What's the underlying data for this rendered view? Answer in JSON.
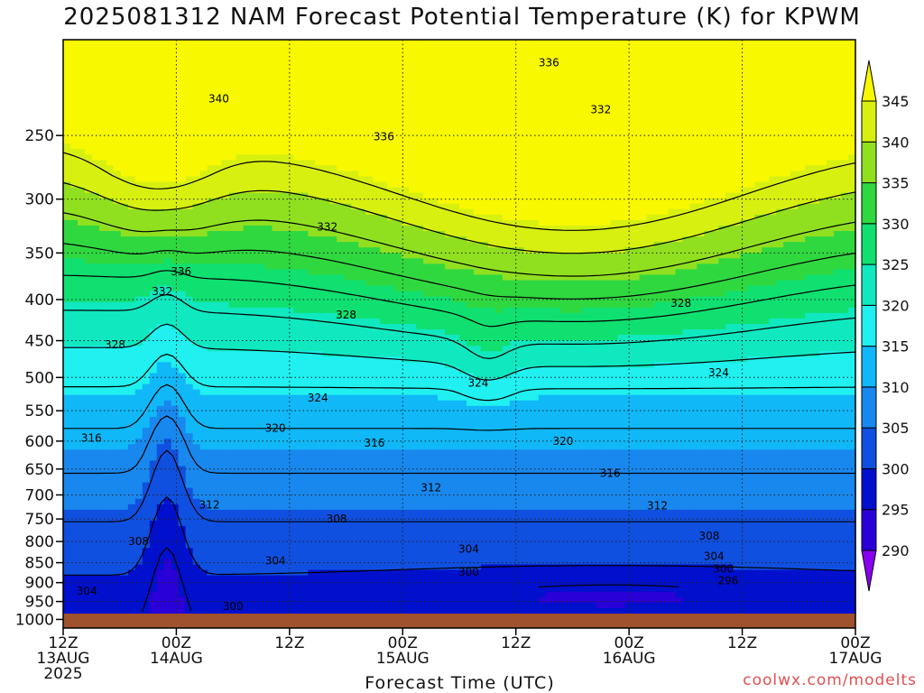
{
  "chart_data": {
    "type": "heatmap",
    "title": "2025081312 NAM Forecast Potential Temperature (K) for KPWM",
    "xlabel": "Forecast Time (UTC)",
    "ylabel": "",
    "credit": "coolwx.com/modelts",
    "y_scale": "log-pressure",
    "ylim_hpa": [
      1025,
      190
    ],
    "y_ticks": [
      "250",
      "300",
      "350",
      "400",
      "450",
      "500",
      "550",
      "600",
      "650",
      "700",
      "750",
      "800",
      "850",
      "900",
      "950",
      "1000"
    ],
    "x_ticks": [
      {
        "hour": 0,
        "line1": "12Z",
        "line2": "13AUG",
        "line3": "2025"
      },
      {
        "hour": 12,
        "line1": "00Z",
        "line2": "14AUG",
        "line3": ""
      },
      {
        "hour": 24,
        "line1": "12Z",
        "line2": "",
        "line3": ""
      },
      {
        "hour": 36,
        "line1": "00Z",
        "line2": "15AUG",
        "line3": ""
      },
      {
        "hour": 48,
        "line1": "12Z",
        "line2": "",
        "line3": ""
      },
      {
        "hour": 60,
        "line1": "00Z",
        "line2": "16AUG",
        "line3": ""
      },
      {
        "hour": 72,
        "line1": "12Z",
        "line2": "",
        "line3": ""
      },
      {
        "hour": 84,
        "line1": "00Z",
        "line2": "17AUG",
        "line3": ""
      }
    ],
    "colorbar": {
      "levels": [
        "290",
        "295",
        "300",
        "305",
        "310",
        "315",
        "320",
        "325",
        "330",
        "335",
        "340",
        "345"
      ],
      "colors": [
        "#8800ee",
        "#2a00d8",
        "#0010cc",
        "#1050e0",
        "#1888ee",
        "#10b8f8",
        "#20f0f0",
        "#10e8c0",
        "#10e070",
        "#30d840",
        "#90e020",
        "#d8f010",
        "#f8f800"
      ]
    },
    "contour_labels": [
      {
        "text": "340",
        "hour": 16.5,
        "p": 225
      },
      {
        "text": "336",
        "hour": 51.5,
        "p": 203
      },
      {
        "text": "332",
        "hour": 57.0,
        "p": 232
      },
      {
        "text": "336",
        "hour": 34.0,
        "p": 251
      },
      {
        "text": "332",
        "hour": 28.0,
        "p": 325
      },
      {
        "text": "336",
        "hour": 12.5,
        "p": 369
      },
      {
        "text": "332",
        "hour": 10.5,
        "p": 391
      },
      {
        "text": "328",
        "hour": 30.0,
        "p": 418
      },
      {
        "text": "328",
        "hour": 5.5,
        "p": 455
      },
      {
        "text": "328",
        "hour": 65.5,
        "p": 404
      },
      {
        "text": "324",
        "hour": 69.5,
        "p": 493
      },
      {
        "text": "324",
        "hour": 44.0,
        "p": 508
      },
      {
        "text": "324",
        "hour": 27.0,
        "p": 530
      },
      {
        "text": "320",
        "hour": 22.5,
        "p": 578
      },
      {
        "text": "320",
        "hour": 53.0,
        "p": 600
      },
      {
        "text": "316",
        "hour": 3.0,
        "p": 595
      },
      {
        "text": "316",
        "hour": 33.0,
        "p": 603
      },
      {
        "text": "316",
        "hour": 58.0,
        "p": 658
      },
      {
        "text": "312",
        "hour": 39.0,
        "p": 686
      },
      {
        "text": "312",
        "hour": 15.5,
        "p": 720
      },
      {
        "text": "312",
        "hour": 63.0,
        "p": 722
      },
      {
        "text": "308",
        "hour": 29.0,
        "p": 750
      },
      {
        "text": "308",
        "hour": 8.0,
        "p": 800
      },
      {
        "text": "308",
        "hour": 68.5,
        "p": 787
      },
      {
        "text": "304",
        "hour": 22.5,
        "p": 845
      },
      {
        "text": "304",
        "hour": 43.0,
        "p": 818
      },
      {
        "text": "304",
        "hour": 69.0,
        "p": 835
      },
      {
        "text": "304",
        "hour": 2.5,
        "p": 922
      },
      {
        "text": "300",
        "hour": 43.0,
        "p": 873
      },
      {
        "text": "300",
        "hour": 70.0,
        "p": 865
      },
      {
        "text": "300",
        "hour": 18.0,
        "p": 963
      },
      {
        "text": "296",
        "hour": 70.5,
        "p": 895
      }
    ]
  }
}
